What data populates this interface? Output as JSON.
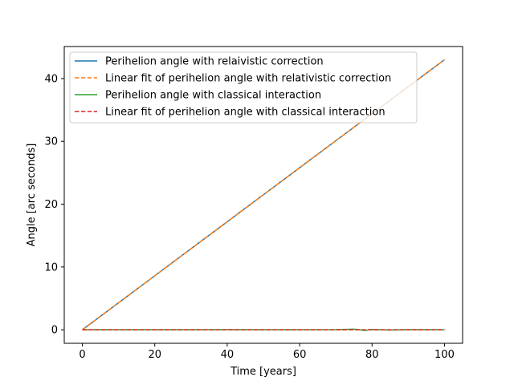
{
  "chart_data": {
    "type": "line",
    "title": "",
    "xlabel": "Time [years]",
    "ylabel": "Angle [arc seconds]",
    "xlim": [
      -5,
      105
    ],
    "ylim": [
      -2.15,
      45.1
    ],
    "xticks": [
      0,
      20,
      40,
      60,
      80,
      100
    ],
    "yticks": [
      0,
      10,
      20,
      30,
      40
    ],
    "grid": false,
    "legend_position": "upper-left",
    "series": [
      {
        "name": "Perihelion angle with relaivistic correction",
        "style": "solid",
        "color": "#1f77b4",
        "x": [
          0,
          10,
          20,
          30,
          40,
          50,
          60,
          70,
          80,
          90,
          100
        ],
        "y": [
          0.0,
          4.3,
          8.6,
          12.9,
          17.2,
          21.5,
          25.8,
          30.1,
          34.4,
          38.7,
          43.0
        ]
      },
      {
        "name": "Linear fit of perihelion angle with relativistic correction",
        "style": "dashed",
        "color": "#ff7f0e",
        "x": [
          0,
          100
        ],
        "y": [
          0.0,
          43.0
        ]
      },
      {
        "name": "Perihelion angle with classical interaction",
        "style": "solid",
        "color": "#2ca02c",
        "x": [
          0,
          10,
          20,
          30,
          40,
          50,
          60,
          70,
          75,
          78,
          80,
          85,
          90,
          100
        ],
        "y": [
          0.0,
          0.0,
          0.01,
          0.0,
          0.02,
          0.0,
          0.01,
          0.02,
          0.1,
          -0.1,
          0.05,
          -0.05,
          0.02,
          0.0
        ]
      },
      {
        "name": "Linear fit of perihelion angle with classical interaction",
        "style": "dashed",
        "color": "#d62728",
        "x": [
          0,
          100
        ],
        "y": [
          0.0,
          0.0
        ]
      }
    ]
  }
}
